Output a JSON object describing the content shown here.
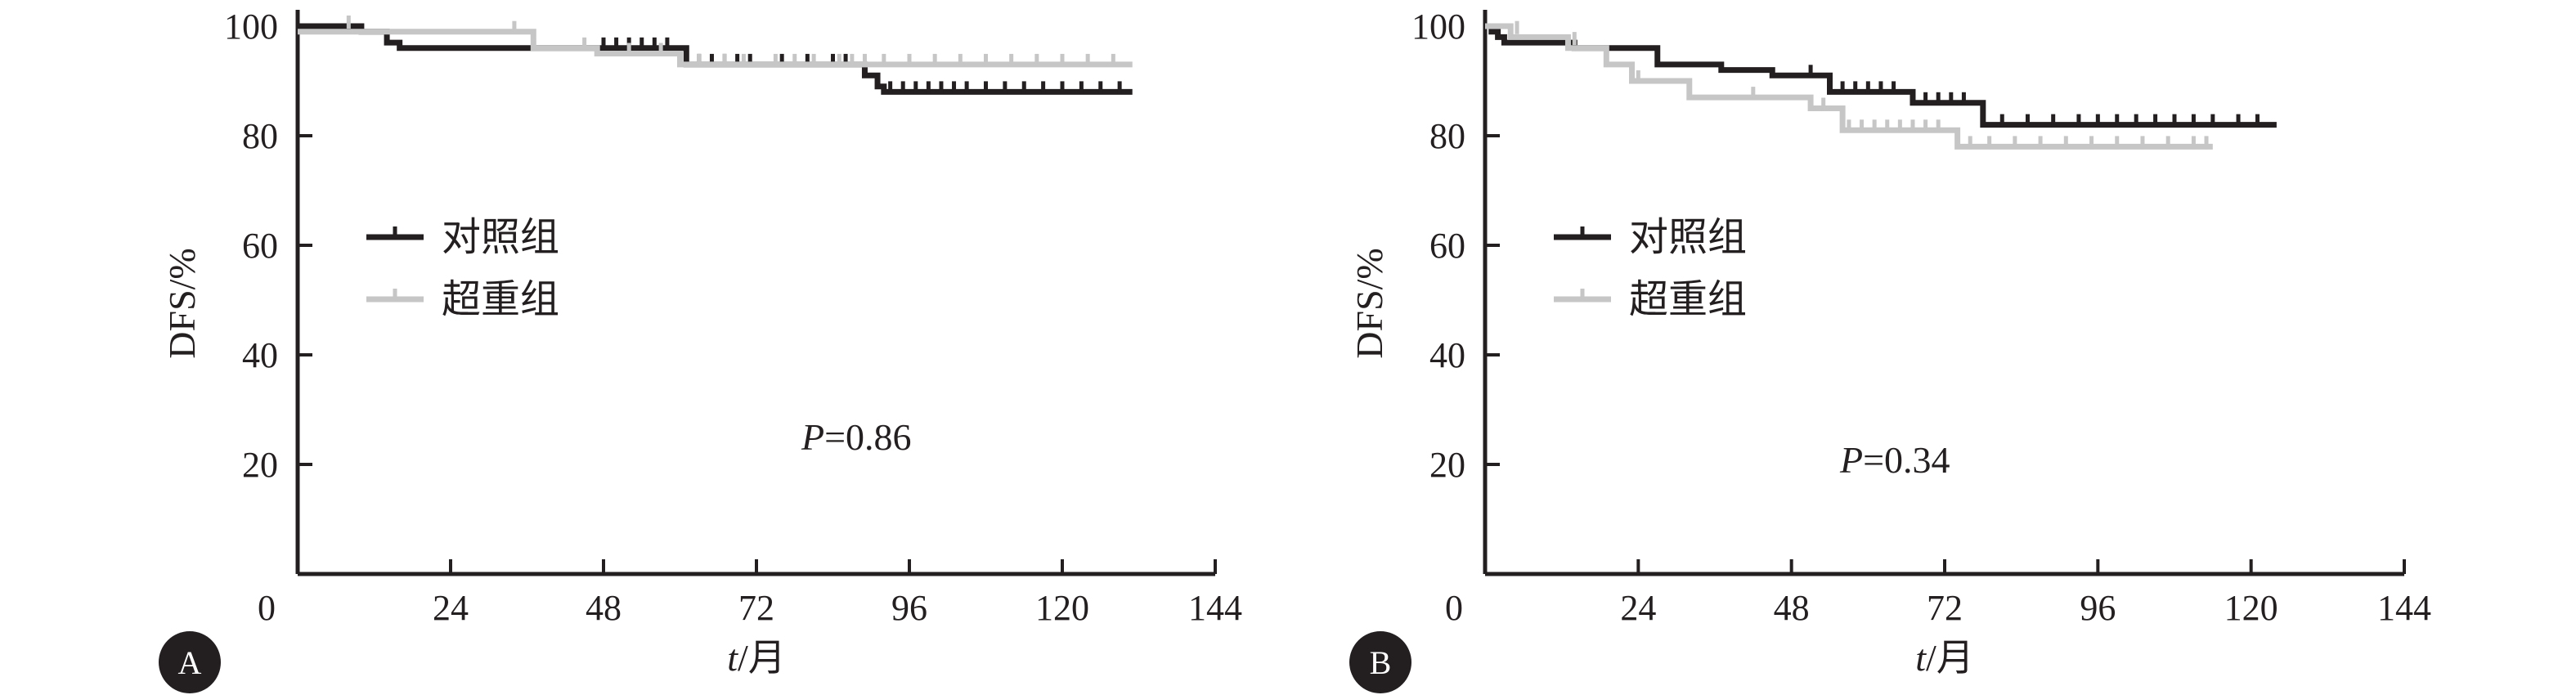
{
  "chart_data": [
    {
      "type": "line",
      "panel_label": "A",
      "xlabel_italic": "t",
      "xlabel_rest": "/月",
      "ylabel": "DFS/%",
      "xlim": [
        0,
        144
      ],
      "ylim": [
        0,
        100
      ],
      "xticks": [
        0,
        24,
        48,
        72,
        96,
        120,
        144
      ],
      "yticks": [
        20,
        40,
        60,
        80,
        100
      ],
      "annotation": {
        "italic": "P",
        "rest": "=0.86"
      },
      "legend": {
        "placement": "middle-left",
        "entries": [
          "对照组",
          "超重组"
        ]
      },
      "series": [
        {
          "name": "对照组",
          "color": "#231f20",
          "x": [
            0,
            10,
            14,
            16,
            60,
            61,
            88,
            89,
            91,
            92,
            131
          ],
          "y": [
            100,
            99,
            97,
            96,
            96,
            93,
            93,
            91,
            89,
            88,
            88
          ],
          "censored": [
            [
              48,
              96
            ],
            [
              50,
              96
            ],
            [
              52,
              96
            ],
            [
              54,
              96
            ],
            [
              56,
              96
            ],
            [
              58,
              96
            ],
            [
              63,
              93
            ],
            [
              65,
              93
            ],
            [
              67,
              93
            ],
            [
              69,
              93
            ],
            [
              71,
              93
            ],
            [
              76,
              93
            ],
            [
              80,
              93
            ],
            [
              84,
              93
            ],
            [
              86,
              93
            ],
            [
              93,
              88
            ],
            [
              95,
              88
            ],
            [
              97,
              88
            ],
            [
              99,
              88
            ],
            [
              101,
              88
            ],
            [
              103,
              88
            ],
            [
              105,
              88
            ],
            [
              108,
              88
            ],
            [
              111,
              88
            ],
            [
              114,
              88
            ],
            [
              117,
              88
            ],
            [
              120,
              88
            ],
            [
              123,
              88
            ],
            [
              126,
              88
            ],
            [
              129,
              88
            ]
          ]
        },
        {
          "name": "超重组",
          "color": "#c6c6c6",
          "x": [
            0,
            36,
            37,
            47,
            58,
            60,
            131
          ],
          "y": [
            99,
            99,
            96,
            95,
            95,
            93,
            93
          ],
          "censored": [
            [
              8,
              100
            ],
            [
              34,
              99
            ],
            [
              45,
              96
            ],
            [
              52,
              95
            ],
            [
              57,
              95
            ],
            [
              63,
              93
            ],
            [
              67,
              93
            ],
            [
              70,
              93
            ],
            [
              75,
              93
            ],
            [
              78,
              93
            ],
            [
              81,
              93
            ],
            [
              85,
              93
            ],
            [
              87,
              93
            ],
            [
              89,
              93
            ],
            [
              92,
              93
            ],
            [
              96,
              93
            ],
            [
              100,
              93
            ],
            [
              104,
              93
            ],
            [
              108,
              93
            ],
            [
              112,
              93
            ],
            [
              116,
              93
            ],
            [
              120,
              93
            ],
            [
              124,
              93
            ],
            [
              128,
              93
            ]
          ]
        }
      ]
    },
    {
      "type": "line",
      "panel_label": "B",
      "xlabel_italic": "t",
      "xlabel_rest": "/月",
      "ylabel": "DFS/%",
      "xlim": [
        0,
        144
      ],
      "ylim": [
        0,
        100
      ],
      "xticks": [
        0,
        24,
        48,
        72,
        96,
        120,
        144
      ],
      "yticks": [
        20,
        40,
        60,
        80,
        100
      ],
      "annotation": {
        "italic": "P",
        "rest": "=0.34"
      },
      "legend": {
        "placement": "middle-left",
        "entries": [
          "对照组",
          "超重组"
        ]
      },
      "series": [
        {
          "name": "对照组",
          "color": "#231f20",
          "x": [
            0,
            1,
            2,
            3,
            13,
            14,
            26,
            27,
            36,
            37,
            44,
            45,
            53,
            54,
            66,
            67,
            77,
            78,
            124
          ],
          "y": [
            100,
            99,
            98,
            97,
            97,
            96,
            96,
            93,
            93,
            92,
            92,
            91,
            91,
            88,
            88,
            86,
            86,
            82,
            82
          ],
          "censored": [
            [
              51,
              91
            ],
            [
              54,
              88
            ],
            [
              56,
              88
            ],
            [
              58,
              88
            ],
            [
              60,
              88
            ],
            [
              62,
              88
            ],
            [
              64,
              88
            ],
            [
              67,
              86
            ],
            [
              69,
              86
            ],
            [
              71,
              86
            ],
            [
              73,
              86
            ],
            [
              75,
              86
            ],
            [
              81,
              82
            ],
            [
              85,
              82
            ],
            [
              89,
              82
            ],
            [
              93,
              82
            ],
            [
              96,
              82
            ],
            [
              99,
              82
            ],
            [
              102,
              82
            ],
            [
              105,
              82
            ],
            [
              108,
              82
            ],
            [
              111,
              82
            ],
            [
              114,
              82
            ],
            [
              118,
              82
            ],
            [
              121,
              82
            ]
          ]
        },
        {
          "name": "超重组",
          "color": "#c6c6c6",
          "x": [
            0,
            3,
            4,
            12,
            13,
            18,
            19,
            22,
            23,
            31,
            32,
            50,
            51,
            55,
            56,
            73,
            74,
            114
          ],
          "y": [
            100,
            100,
            98,
            98,
            96,
            96,
            93,
            93,
            90,
            90,
            87,
            87,
            85,
            85,
            81,
            81,
            78,
            78
          ],
          "censored": [
            [
              5,
              99
            ],
            [
              14,
              97
            ],
            [
              24,
              90
            ],
            [
              42,
              87
            ],
            [
              53,
              85
            ],
            [
              57,
              81
            ],
            [
              59,
              81
            ],
            [
              61,
              81
            ],
            [
              63,
              81
            ],
            [
              65,
              81
            ],
            [
              67,
              81
            ],
            [
              69,
              81
            ],
            [
              71,
              81
            ],
            [
              76,
              78
            ],
            [
              79,
              78
            ],
            [
              83,
              78
            ],
            [
              87,
              78
            ],
            [
              91,
              78
            ],
            [
              95,
              78
            ],
            [
              99,
              78
            ],
            [
              103,
              78
            ],
            [
              107,
              78
            ],
            [
              111,
              78
            ],
            [
              113,
              78
            ]
          ]
        }
      ]
    }
  ]
}
